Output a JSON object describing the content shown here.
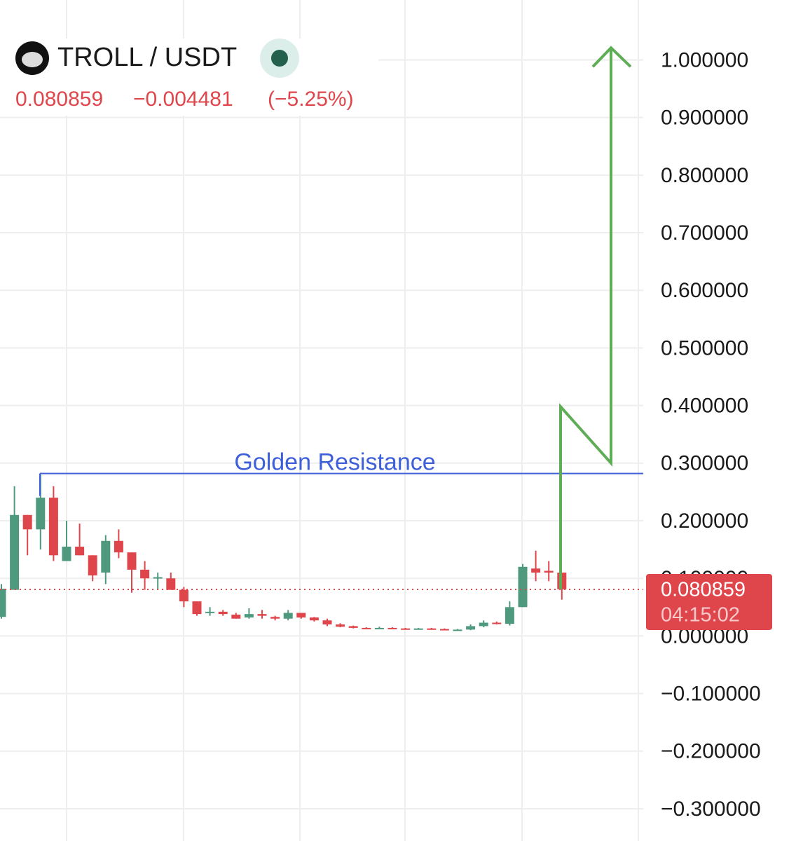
{
  "header": {
    "symbol": "TROLL / USDT",
    "price": 0.080859,
    "change": "−0.004481",
    "change_pct": "(−5.25%)"
  },
  "chart_data": {
    "type": "candlestick",
    "up_color": "#4f9a7f",
    "down_color": "#df464c",
    "open": [
      0.033,
      0.08,
      0.21,
      0.185,
      0.24,
      0.13,
      0.155,
      0.14,
      0.11,
      0.165,
      0.145,
      0.115,
      0.1,
      0.1,
      0.08,
      0.06,
      0.04,
      0.042,
      0.037,
      0.032,
      0.038,
      0.033,
      0.03,
      0.04,
      0.032,
      0.027,
      0.02,
      0.017,
      0.014,
      0.013,
      0.014,
      0.013,
      0.012,
      0.013,
      0.012,
      0.011,
      0.011,
      0.017,
      0.023,
      0.021,
      0.05,
      0.117,
      0.113,
      0.11
    ],
    "high": [
      0.09,
      0.26,
      0.21,
      0.28,
      0.26,
      0.2,
      0.195,
      0.14,
      0.175,
      0.185,
      0.145,
      0.13,
      0.11,
      0.11,
      0.085,
      0.06,
      0.05,
      0.045,
      0.04,
      0.048,
      0.045,
      0.035,
      0.045,
      0.04,
      0.033,
      0.03,
      0.022,
      0.018,
      0.015,
      0.016,
      0.015,
      0.014,
      0.014,
      0.014,
      0.013,
      0.012,
      0.02,
      0.027,
      0.025,
      0.06,
      0.125,
      0.148,
      0.13,
      0.11
    ],
    "low": [
      0.03,
      0.08,
      0.14,
      0.15,
      0.13,
      0.13,
      0.14,
      0.095,
      0.09,
      0.135,
      0.075,
      0.08,
      0.08,
      0.08,
      0.05,
      0.035,
      0.035,
      0.035,
      0.03,
      0.03,
      0.03,
      0.027,
      0.027,
      0.03,
      0.025,
      0.017,
      0.015,
      0.013,
      0.012,
      0.012,
      0.012,
      0.011,
      0.011,
      0.011,
      0.01,
      0.01,
      0.01,
      0.015,
      0.02,
      0.018,
      0.05,
      0.095,
      0.095,
      0.063
    ],
    "close": [
      0.082,
      0.21,
      0.185,
      0.24,
      0.14,
      0.155,
      0.14,
      0.105,
      0.165,
      0.145,
      0.115,
      0.1,
      0.102,
      0.08,
      0.06,
      0.038,
      0.042,
      0.038,
      0.03,
      0.038,
      0.035,
      0.03,
      0.04,
      0.032,
      0.027,
      0.02,
      0.016,
      0.014,
      0.013,
      0.014,
      0.013,
      0.012,
      0.013,
      0.012,
      0.011,
      0.011,
      0.017,
      0.023,
      0.021,
      0.05,
      0.12,
      0.11,
      0.11,
      0.081
    ],
    "ylim": [
      -0.356,
      1.104
    ],
    "yticks": [
      {
        "value": 1,
        "label": "1.000000"
      },
      {
        "value": 0.9,
        "label": "0.900000"
      },
      {
        "value": 0.8,
        "label": "0.800000"
      },
      {
        "value": 0.7,
        "label": "0.700000"
      },
      {
        "value": 0.6,
        "label": "0.600000"
      },
      {
        "value": 0.5,
        "label": "0.500000"
      },
      {
        "value": 0.4,
        "label": "0.400000"
      },
      {
        "value": 0.3,
        "label": "0.300000"
      },
      {
        "value": 0.2,
        "label": "0.200000"
      },
      {
        "value": 0.1,
        "label": "0.100000"
      },
      {
        "value": 0,
        "label": "0.000000"
      },
      {
        "value": -0.1,
        "label": "−0.100000"
      },
      {
        "value": -0.2,
        "label": "−0.200000"
      },
      {
        "value": -0.3,
        "label": "−0.300000"
      }
    ],
    "grid": true,
    "last_price": {
      "value": 0.080859,
      "countdown": "04:15:02"
    },
    "resistance": {
      "label": "Golden Resistance",
      "value": 0.282,
      "color": "#3d5fd8"
    },
    "projection": {
      "color": "#5fae57",
      "values": [
        0.081,
        0.398,
        0.3,
        1.021
      ]
    }
  }
}
